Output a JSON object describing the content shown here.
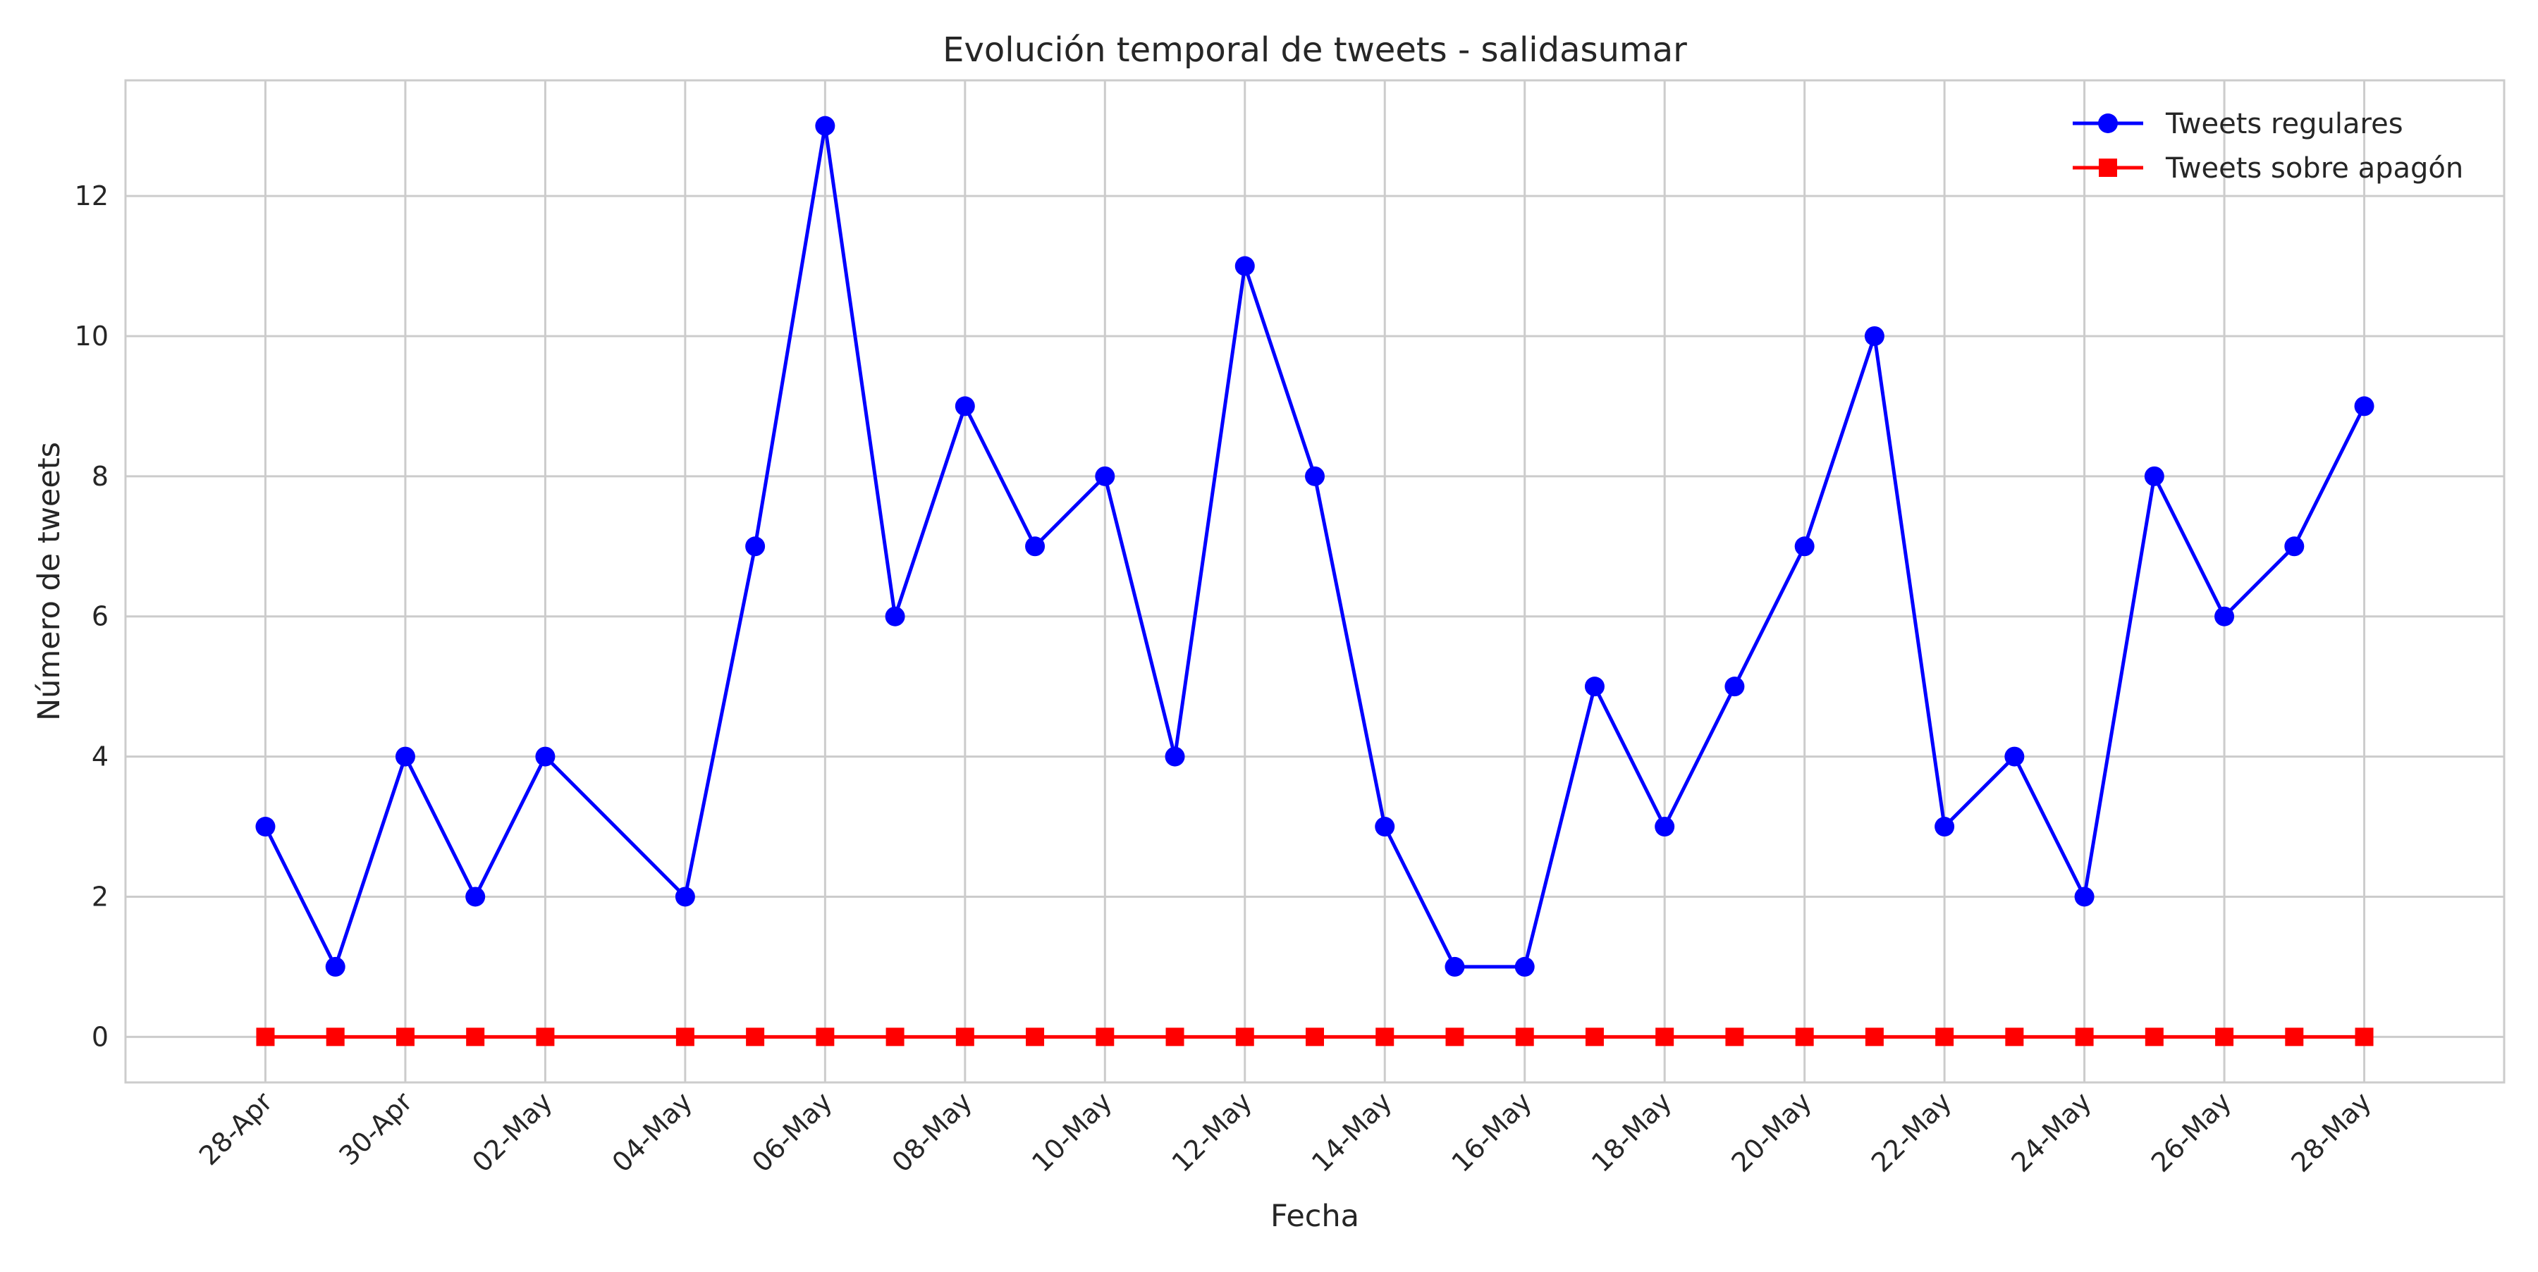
{
  "colors": {
    "regular": "#0000ff",
    "apagon": "#ff0000",
    "grid": "#cccccc",
    "text": "#262626"
  },
  "chart_data": {
    "type": "line",
    "title": "Evolución temporal de tweets - salidasumar",
    "xlabel": "Fecha",
    "ylabel": "Número de tweets",
    "x_axis_type": "date",
    "x_range": [
      "2025-04-26",
      "2025-05-30"
    ],
    "ylim": [
      -0.65,
      13.65
    ],
    "yticks": [
      0,
      2,
      4,
      6,
      8,
      10,
      12
    ],
    "xticks": [
      {
        "date": "2025-04-28",
        "label": "28-Apr"
      },
      {
        "date": "2025-04-30",
        "label": "30-Apr"
      },
      {
        "date": "2025-05-02",
        "label": "02-May"
      },
      {
        "date": "2025-05-04",
        "label": "04-May"
      },
      {
        "date": "2025-05-06",
        "label": "06-May"
      },
      {
        "date": "2025-05-08",
        "label": "08-May"
      },
      {
        "date": "2025-05-10",
        "label": "10-May"
      },
      {
        "date": "2025-05-12",
        "label": "12-May"
      },
      {
        "date": "2025-05-14",
        "label": "14-May"
      },
      {
        "date": "2025-05-16",
        "label": "16-May"
      },
      {
        "date": "2025-05-18",
        "label": "18-May"
      },
      {
        "date": "2025-05-20",
        "label": "20-May"
      },
      {
        "date": "2025-05-22",
        "label": "22-May"
      },
      {
        "date": "2025-05-24",
        "label": "24-May"
      },
      {
        "date": "2025-05-26",
        "label": "26-May"
      },
      {
        "date": "2025-05-28",
        "label": "28-May"
      }
    ],
    "x": [
      "2025-04-28",
      "2025-04-29",
      "2025-04-30",
      "2025-05-01",
      "2025-05-02",
      "2025-05-04",
      "2025-05-05",
      "2025-05-06",
      "2025-05-07",
      "2025-05-08",
      "2025-05-09",
      "2025-05-10",
      "2025-05-11",
      "2025-05-12",
      "2025-05-13",
      "2025-05-14",
      "2025-05-15",
      "2025-05-16",
      "2025-05-17",
      "2025-05-18",
      "2025-05-19",
      "2025-05-20",
      "2025-05-21",
      "2025-05-22",
      "2025-05-23",
      "2025-05-24",
      "2025-05-25",
      "2025-05-26",
      "2025-05-27",
      "2025-05-28"
    ],
    "series": [
      {
        "name": "Tweets regulares",
        "marker": "circle",
        "color": "#0000ff",
        "values": [
          3,
          1,
          4,
          2,
          4,
          2,
          7,
          13,
          6,
          9,
          7,
          8,
          4,
          11,
          8,
          3,
          1,
          1,
          5,
          3,
          5,
          7,
          10,
          3,
          4,
          2,
          8,
          6,
          7,
          9
        ]
      },
      {
        "name": "Tweets sobre apagón",
        "marker": "square",
        "color": "#ff0000",
        "values": [
          0,
          0,
          0,
          0,
          0,
          0,
          0,
          0,
          0,
          0,
          0,
          0,
          0,
          0,
          0,
          0,
          0,
          0,
          0,
          0,
          0,
          0,
          0,
          0,
          0,
          0,
          0,
          0,
          0,
          0
        ]
      }
    ],
    "grid": true,
    "legend_position": "top-right"
  }
}
